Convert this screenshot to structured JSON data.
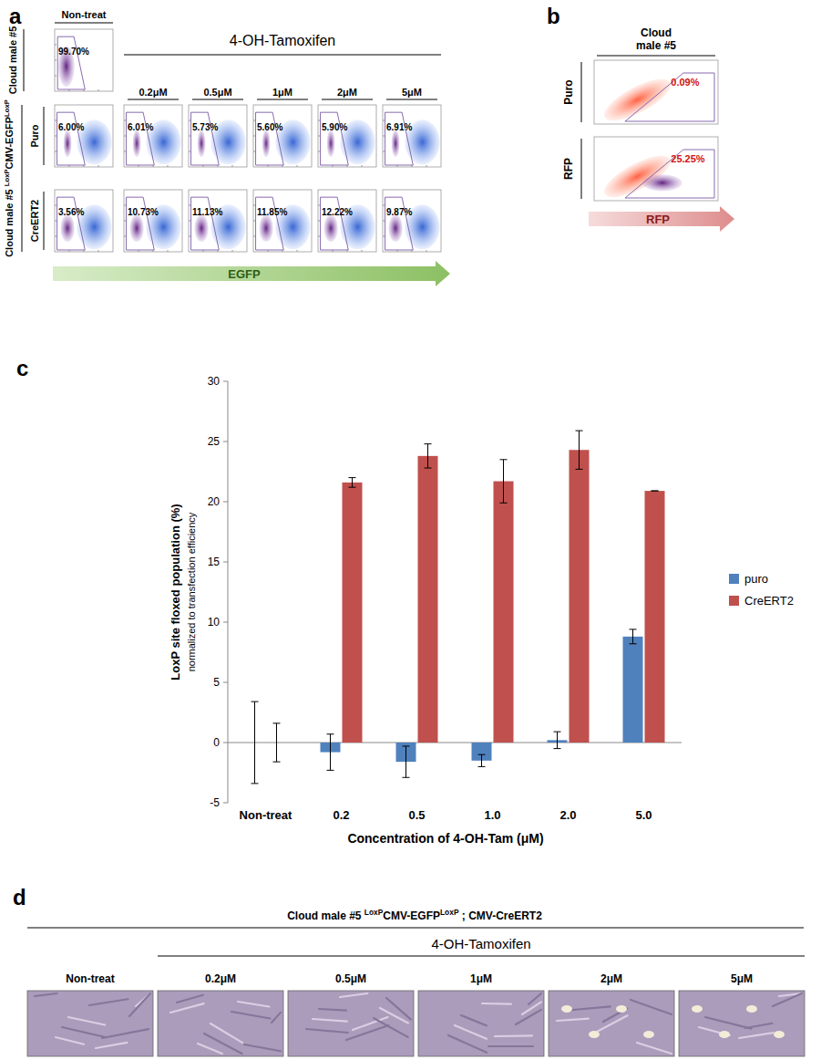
{
  "panel_a": {
    "label": "a",
    "control_header": "Non-treat",
    "treatment_header": "4-OH-Tamoxifen",
    "concentrations": [
      "0.2μM",
      "0.5μM",
      "1μM",
      "2μM",
      "5μM"
    ],
    "control_row_label": "Cloud male #5",
    "group_label": [
      {
        "text": "Cloud male #5 "
      },
      {
        "text": "LoxP",
        "sup": true
      },
      {
        "text": "CMV-EGFP"
      },
      {
        "text": "LoxP",
        "sup": true
      }
    ],
    "control_gate": "99.70%",
    "rows": [
      {
        "label": "Puro",
        "gates": [
          "6.00%",
          "6.01%",
          "5.73%",
          "5.60%",
          "5.90%",
          "6.91%"
        ]
      },
      {
        "label": "CreERT2",
        "gates": [
          "3.56%",
          "10.73%",
          "11.13%",
          "11.85%",
          "12.22%",
          "9.87%"
        ]
      }
    ],
    "axis_label": "EGFP"
  },
  "panel_b": {
    "label": "b",
    "header": [
      "Cloud",
      "male #5"
    ],
    "rows": [
      {
        "label": "Puro",
        "gate": "0.09%"
      },
      {
        "label": "RFP",
        "gate": "25.25%"
      }
    ],
    "axis_label": "RFP"
  },
  "chart_data": {
    "type": "bar",
    "panel_label": "c",
    "y_label": "LoxP site floxed population (%)",
    "y_sublabel": "normalized to transfection efficiency",
    "x_label": "Concentration of 4-OH-Tam (μM)",
    "categories": [
      "Non-treat",
      "0.2",
      "0.5",
      "1.0",
      "2.0",
      "5.0"
    ],
    "series": [
      {
        "name": "puro",
        "color": "#4f81bd",
        "values": [
          0,
          -0.8,
          -1.6,
          -1.5,
          0.2,
          8.8
        ],
        "errors": [
          3.4,
          1.5,
          1.3,
          0.5,
          0.7,
          0.6
        ]
      },
      {
        "name": "CreERT2",
        "color": "#c0504d",
        "values": [
          0,
          21.6,
          23.8,
          21.7,
          24.3,
          20.9
        ],
        "errors": [
          1.6,
          0.4,
          1.0,
          1.8,
          1.6,
          0
        ]
      }
    ],
    "ylim": [
      -5,
      30
    ],
    "yticks": [
      -5,
      0,
      5,
      10,
      15,
      20,
      25,
      30
    ],
    "grid": false,
    "legend": "right"
  },
  "panel_d": {
    "label": "d",
    "header": [
      {
        "text": "Cloud male #5 "
      },
      {
        "text": "LoxP",
        "sup": true
      },
      {
        "text": "CMV-EGFP"
      },
      {
        "text": "LoxP",
        "sup": true
      },
      {
        "text": " ; CMV-CreERT2"
      }
    ],
    "treatment_header": "4-OH-Tamoxifen",
    "columns": [
      "Non-treat",
      "0.2μM",
      "0.5μM",
      "1μM",
      "2μM",
      "5μM"
    ]
  }
}
